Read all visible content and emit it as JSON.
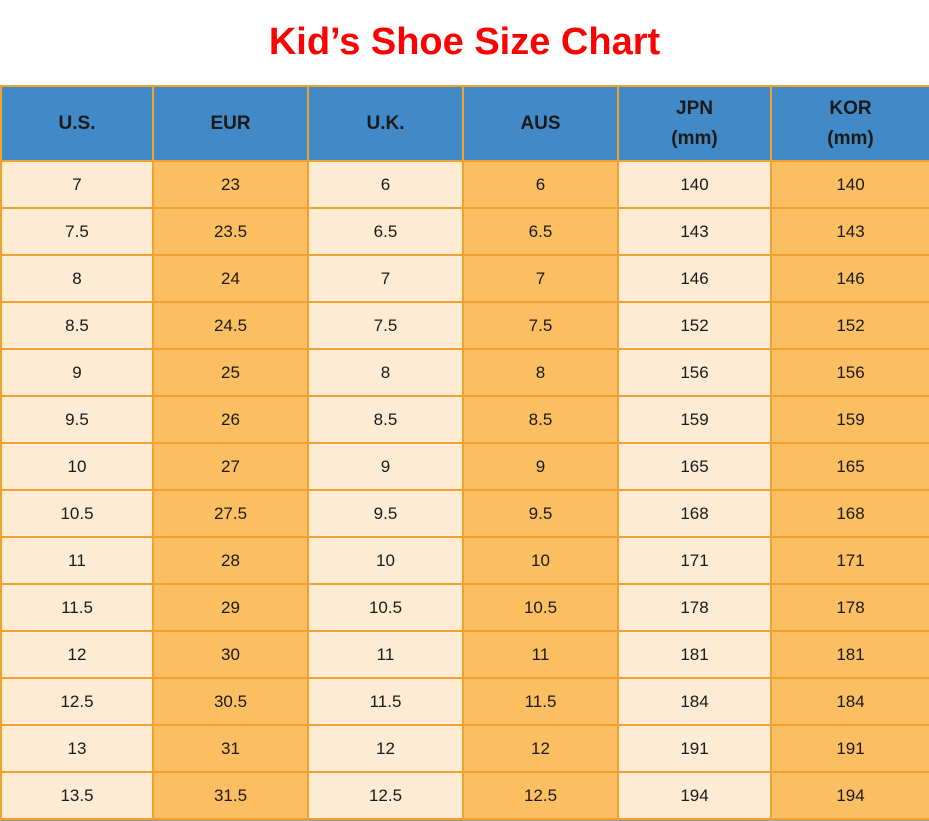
{
  "title": "Kid’s Shoe Size Chart",
  "colors": {
    "title_red": "#FF0000",
    "header_blue": "#4289C7",
    "cell_cream": "#FDEBD3",
    "cell_amber": "#FBBE61",
    "border_orange": "#EFA232",
    "text_black": "#1A1A1A",
    "bottom_bar": "#2F2F2F"
  },
  "table": {
    "columns": [
      {
        "key": "us",
        "label": "U.S.",
        "sub": ""
      },
      {
        "key": "eur",
        "label": "EUR",
        "sub": ""
      },
      {
        "key": "uk",
        "label": "U.K.",
        "sub": ""
      },
      {
        "key": "aus",
        "label": "AUS",
        "sub": ""
      },
      {
        "key": "jpn",
        "label": "JPN",
        "sub": "(mm)"
      },
      {
        "key": "kor",
        "label": "KOR",
        "sub": "(mm)"
      }
    ],
    "rows": [
      [
        "7",
        "23",
        "6",
        "6",
        "140",
        "140"
      ],
      [
        "7.5",
        "23.5",
        "6.5",
        "6.5",
        "143",
        "143"
      ],
      [
        "8",
        "24",
        "7",
        "7",
        "146",
        "146"
      ],
      [
        "8.5",
        "24.5",
        "7.5",
        "7.5",
        "152",
        "152"
      ],
      [
        "9",
        "25",
        "8",
        "8",
        "156",
        "156"
      ],
      [
        "9.5",
        "26",
        "8.5",
        "8.5",
        "159",
        "159"
      ],
      [
        "10",
        "27",
        "9",
        "9",
        "165",
        "165"
      ],
      [
        "10.5",
        "27.5",
        "9.5",
        "9.5",
        "168",
        "168"
      ],
      [
        "11",
        "28",
        "10",
        "10",
        "171",
        "171"
      ],
      [
        "11.5",
        "29",
        "10.5",
        "10.5",
        "178",
        "178"
      ],
      [
        "12",
        "30",
        "11",
        "11",
        "181",
        "181"
      ],
      [
        "12.5",
        "30.5",
        "11.5",
        "11.5",
        "184",
        "184"
      ],
      [
        "13",
        "31",
        "12",
        "12",
        "191",
        "191"
      ],
      [
        "13.5",
        "31.5",
        "12.5",
        "12.5",
        "194",
        "194"
      ]
    ]
  },
  "chart_data": {
    "type": "table",
    "title": "Kid’s Shoe Size Chart",
    "columns": [
      "U.S.",
      "EUR",
      "U.K.",
      "AUS",
      "JPN (mm)",
      "KOR (mm)"
    ],
    "rows": [
      [
        "7",
        "23",
        "6",
        "6",
        "140",
        "140"
      ],
      [
        "7.5",
        "23.5",
        "6.5",
        "6.5",
        "143",
        "143"
      ],
      [
        "8",
        "24",
        "7",
        "7",
        "146",
        "146"
      ],
      [
        "8.5",
        "24.5",
        "7.5",
        "7.5",
        "152",
        "152"
      ],
      [
        "9",
        "25",
        "8",
        "8",
        "156",
        "156"
      ],
      [
        "9.5",
        "26",
        "8.5",
        "8.5",
        "159",
        "159"
      ],
      [
        "10",
        "27",
        "9",
        "9",
        "165",
        "165"
      ],
      [
        "10.5",
        "27.5",
        "9.5",
        "9.5",
        "168",
        "168"
      ],
      [
        "11",
        "28",
        "10",
        "10",
        "171",
        "171"
      ],
      [
        "11.5",
        "29",
        "10.5",
        "10.5",
        "178",
        "178"
      ],
      [
        "12",
        "30",
        "11",
        "11",
        "181",
        "181"
      ],
      [
        "12.5",
        "30.5",
        "11.5",
        "11.5",
        "184",
        "184"
      ],
      [
        "13",
        "31",
        "12",
        "12",
        "191",
        "191"
      ],
      [
        "13.5",
        "31.5",
        "12.5",
        "12.5",
        "194",
        "194"
      ]
    ],
    "layout": {
      "column_striping": [
        "cream",
        "amber",
        "cream",
        "amber",
        "cream",
        "amber"
      ],
      "header_background": "#4289C7",
      "grid": "on",
      "grid_color": "#EFA232"
    }
  }
}
